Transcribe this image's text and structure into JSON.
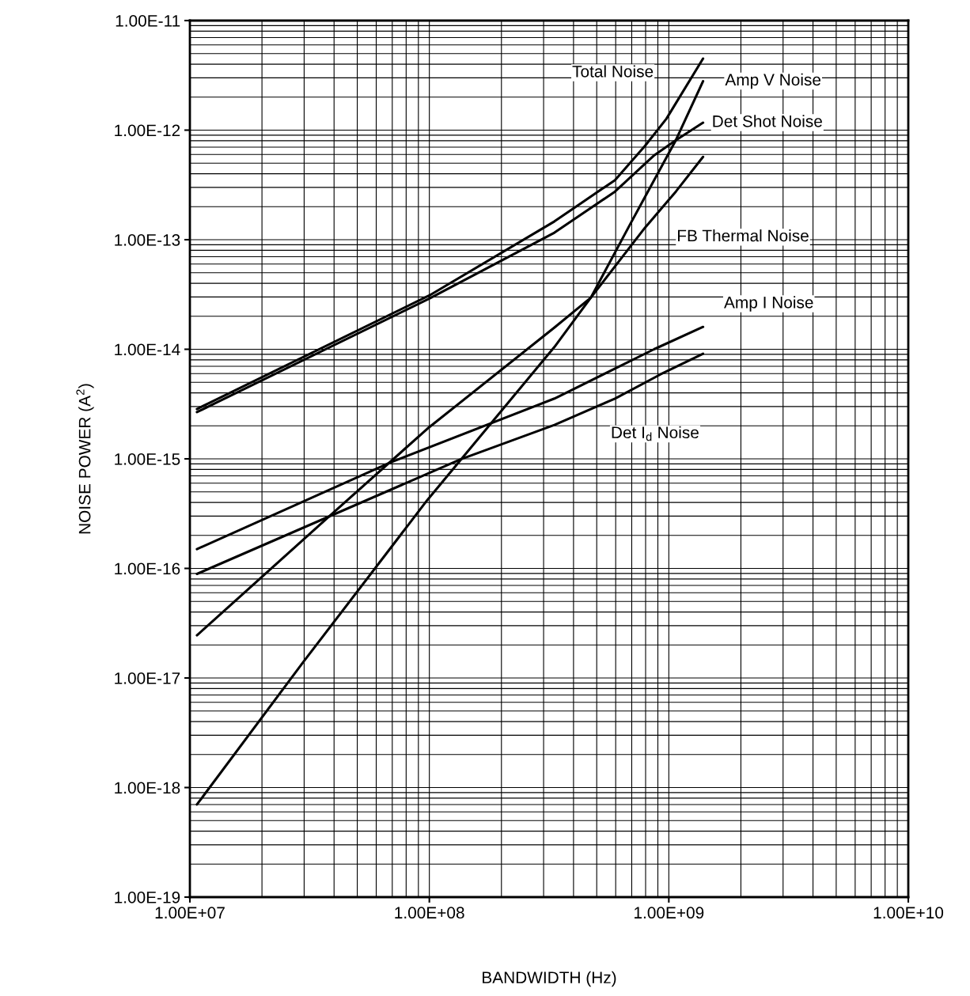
{
  "chart_data": {
    "type": "line",
    "xlabel": "BANDWIDTH (Hz)",
    "ylabel": "NOISE POWER (A$^{2}$)",
    "log": "xy",
    "grid": true,
    "line_style": "solid",
    "marker": "none",
    "xlim": [
      10000000.0,
      10000000000.0
    ],
    "xticks": [
      {
        "value": 10000000.0,
        "label": "1.00E+07"
      },
      {
        "value": 100000000.0,
        "label": "1.00E+08"
      },
      {
        "value": 1000000000.0,
        "label": "1.00E+09"
      },
      {
        "value": 10000000000.0,
        "label": "1.00E+10"
      }
    ],
    "ylim": [
      1e-19,
      1e-11
    ],
    "yticks": [
      {
        "value": 1e-19,
        "label": "1.00E-19"
      },
      {
        "value": 1e-18,
        "label": "1.00E-18"
      },
      {
        "value": 1e-17,
        "label": "1.00E-17"
      },
      {
        "value": 1e-16,
        "label": "1.00E-16"
      },
      {
        "value": 1e-15,
        "label": "1.00E-15"
      },
      {
        "value": 1e-14,
        "label": "1.00E-14"
      },
      {
        "value": 1e-13,
        "label": "1.00E-13"
      },
      {
        "value": 1e-12,
        "label": "1.00E-12"
      },
      {
        "value": 1e-11,
        "label": "1.00E-11"
      }
    ],
    "series": [
      {
        "name": "Total Noise",
        "color": "#000000",
        "x": [
          10700000.0,
          100000000.0,
          333000000.0,
          596000000.0,
          796000000.0,
          977000000.0,
          1390000000.0
        ],
        "values": [
          2.85e-15,
          3.1e-14,
          1.47e-13,
          3.5e-13,
          7.2e-13,
          1.27e-12,
          4.5e-12
        ]
      },
      {
        "name": "Amp V Noise",
        "color": "#000000",
        "x": [
          10700000.0,
          29700000.0,
          98000000.0,
          333000000.0,
          472000000.0,
          689000000.0,
          1070000000.0,
          1390000000.0
        ],
        "values": [
          7e-19,
          1.39e-17,
          4.2e-16,
          1.05e-14,
          2.95e-14,
          1.38e-13,
          8.1e-13,
          2.8e-12
        ]
      },
      {
        "name": "Det Shot Noise",
        "color": "#000000",
        "x": [
          10700000.0,
          100000000.0,
          333000000.0,
          596000000.0,
          870000000.0,
          1070000000.0,
          1390000000.0
        ],
        "values": [
          2.67e-15,
          2.9e-14,
          1.16e-13,
          2.75e-13,
          5.9e-13,
          8.1e-13,
          1.17e-12
        ]
      },
      {
        "name": "FB Thermal Noise",
        "color": "#000000",
        "x": [
          10700000.0,
          38600000.0,
          98000000.0,
          333000000.0,
          472000000.0,
          796000000.0,
          1070000000.0,
          1390000000.0
        ],
        "values": [
          2.45e-17,
          3.05e-16,
          1.88e-15,
          1.58e-14,
          2.95e-14,
          1.29e-13,
          2.75e-13,
          5.7e-13
        ]
      },
      {
        "name": "Amp I Noise",
        "color": "#000000",
        "x": [
          10700000.0,
          69000000.0,
          333000000.0,
          867000000.0,
          1390000000.0
        ],
        "values": [
          1.5e-16,
          9.3e-16,
          3.55e-15,
          1e-14,
          1.6e-14
        ]
      },
      {
        "name": "Det I$_{d}$ Noise",
        "color": "#000000",
        "x": [
          10700000.0,
          135000000.0,
          333000000.0,
          596000000.0,
          923000000.0,
          1390000000.0
        ],
        "values": [
          8.9e-17,
          9.9e-16,
          2.04e-15,
          3.55e-15,
          5.9e-15,
          9.1e-15
        ]
      }
    ]
  }
}
